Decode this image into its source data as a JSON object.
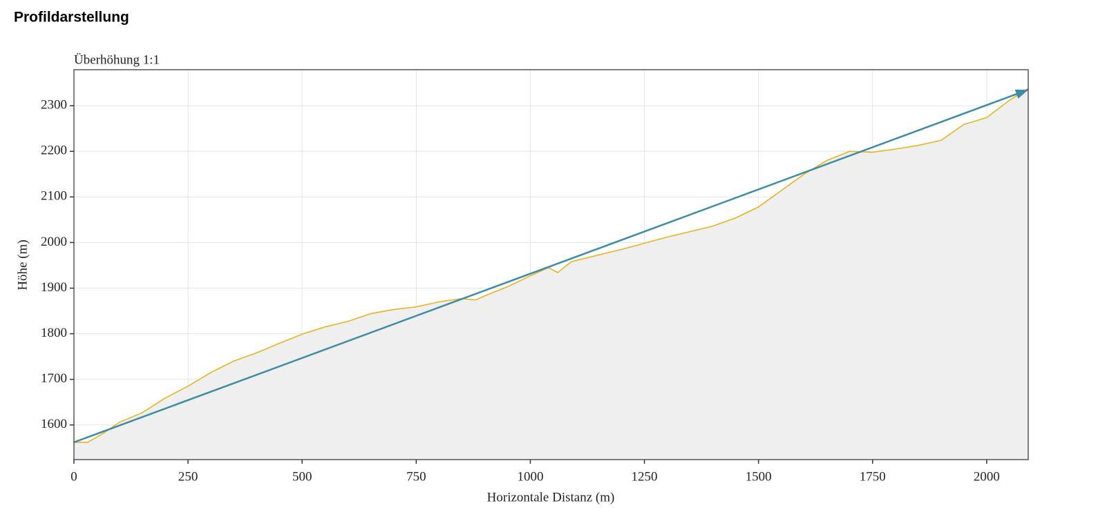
{
  "header": {
    "title": "Profildarstellung"
  },
  "chart_data": {
    "type": "area",
    "subtitle": "Überhöhung 1:1",
    "xlabel": "Horizontale Distanz (m)",
    "ylabel": "Höhe (m)",
    "x": [
      0,
      30,
      60,
      100,
      150,
      200,
      250,
      300,
      350,
      400,
      450,
      500,
      550,
      600,
      650,
      700,
      750,
      800,
      850,
      880,
      900,
      950,
      1000,
      1040,
      1060,
      1090,
      1150,
      1200,
      1300,
      1400,
      1450,
      1500,
      1550,
      1600,
      1650,
      1700,
      1750,
      1800,
      1850,
      1900,
      1950,
      2000,
      2050,
      2091
    ],
    "values": [
      1562,
      1562,
      1579,
      1606,
      1627,
      1659,
      1685,
      1715,
      1740,
      1758,
      1779,
      1799,
      1815,
      1827,
      1844,
      1853,
      1859,
      1870,
      1877,
      1874,
      1883,
      1903,
      1927,
      1945,
      1934,
      1958,
      1973,
      1985,
      2012,
      2036,
      2054,
      2078,
      2114,
      2150,
      2180,
      2200,
      2198,
      2205,
      2213,
      2224,
      2259,
      2274,
      2312,
      2338
    ],
    "color": "#e8b31e",
    "fill_color": "#efefef",
    "arrow": {
      "x": [
        0,
        2091
      ],
      "values": [
        1562,
        2335
      ],
      "color": "#3b8ca4"
    },
    "xlim": [
      0,
      2091
    ],
    "ylim": [
      1524,
      2379
    ],
    "xticks": [
      0,
      250,
      500,
      750,
      1000,
      1250,
      1500,
      1750,
      2000
    ],
    "yticks": [
      1600,
      1700,
      1800,
      1900,
      2000,
      2100,
      2200,
      2300
    ],
    "grid": true
  }
}
